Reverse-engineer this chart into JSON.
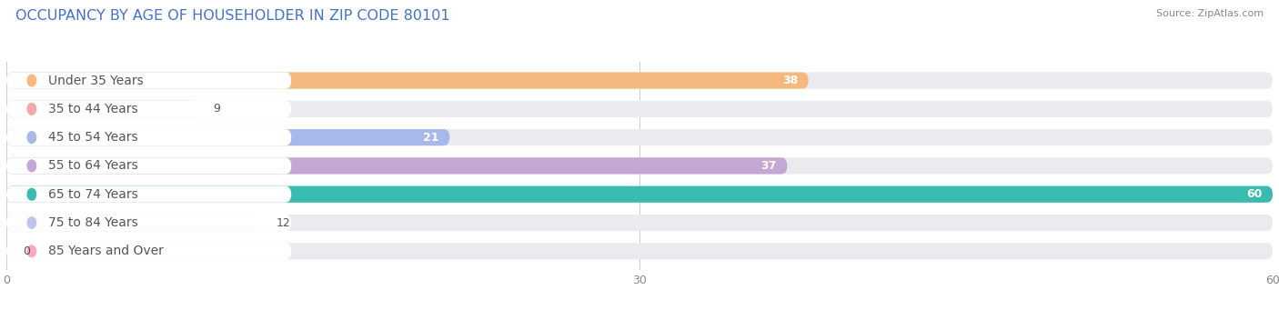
{
  "title": "OCCUPANCY BY AGE OF HOUSEHOLDER IN ZIP CODE 80101",
  "source": "Source: ZipAtlas.com",
  "categories": [
    "Under 35 Years",
    "35 to 44 Years",
    "45 to 54 Years",
    "55 to 64 Years",
    "65 to 74 Years",
    "75 to 84 Years",
    "85 Years and Over"
  ],
  "values": [
    38,
    9,
    21,
    37,
    60,
    12,
    0
  ],
  "bar_colors": [
    "#F5B97F",
    "#F4A8A8",
    "#A8B8E8",
    "#C4A8D4",
    "#3ABBB0",
    "#C0C4EC",
    "#F8A8C0"
  ],
  "bar_bg_color": "#EAEAEF",
  "xlim_max": 60,
  "xticks": [
    0,
    30,
    60
  ],
  "title_fontsize": 11.5,
  "label_fontsize": 10,
  "value_fontsize": 9,
  "background_color": "#FFFFFF",
  "bar_height": 0.58,
  "label_bg_color": "#FFFFFF",
  "label_text_color": "#555555",
  "title_color": "#4472C4",
  "source_color": "#888888"
}
